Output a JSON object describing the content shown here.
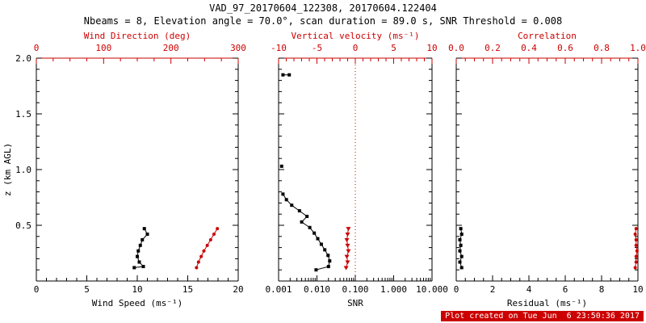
{
  "title": "VAD_97_20170604_122308, 20170604.122404",
  "subtitle": "Nbeams = 8, Elevation angle = 70.0°, scan duration = 89.0 s, SNR Threshold = 0.008",
  "footer": {
    "text": "Plot created on Tue Jun  6 23:50:36 2017"
  },
  "colors": {
    "primary": "#000000",
    "secondary": "#cc0000",
    "background": "#ffffff",
    "footer_bg": "#cc0000",
    "footer_fg": "#ffffff"
  },
  "chart_data": [
    {
      "type": "line",
      "name": "wind-panel",
      "bottom_axis": {
        "label": "Wind Speed (ms⁻¹)",
        "min": 0,
        "max": 20,
        "ticks": [
          0,
          5,
          10,
          15,
          20
        ],
        "tick_labels": [
          "0",
          "5",
          "10",
          "15",
          "20"
        ],
        "minor_step": 1,
        "color": "black"
      },
      "top_axis": {
        "label": "Wind Direction (deg)",
        "min": 0,
        "max": 300,
        "ticks": [
          0,
          100,
          200,
          300
        ],
        "tick_labels": [
          "0",
          "100",
          "200",
          "300"
        ],
        "minor_step": 25,
        "color": "red"
      },
      "y_axis": {
        "label": "z (km AGL)",
        "min": 0,
        "max": 2,
        "ticks": [
          0.5,
          1.0,
          1.5,
          2.0
        ],
        "tick_labels": [
          "0.5",
          "1.0",
          "1.5",
          "2.0"
        ],
        "minor_step": 0.1,
        "show_labels": true
      },
      "series": [
        {
          "name": "wind-speed",
          "axis": "bottom",
          "color": "black",
          "marker": "square",
          "points": [
            [
              9.7,
              0.12
            ],
            [
              10.6,
              0.13
            ],
            [
              10.2,
              0.17
            ],
            [
              10.0,
              0.22
            ],
            [
              10.1,
              0.27
            ],
            [
              10.3,
              0.32
            ],
            [
              10.5,
              0.37
            ],
            [
              11.0,
              0.42
            ],
            [
              10.7,
              0.47
            ]
          ]
        },
        {
          "name": "wind-direction",
          "axis": "top",
          "color": "red",
          "marker": "circle",
          "points": [
            [
              238,
              0.12
            ],
            [
              241,
              0.17
            ],
            [
              245,
              0.22
            ],
            [
              249,
              0.27
            ],
            [
              254,
              0.32
            ],
            [
              259,
              0.37
            ],
            [
              264,
              0.42
            ],
            [
              269,
              0.47
            ]
          ]
        }
      ]
    },
    {
      "type": "line",
      "name": "snr-panel",
      "bottom_axis": {
        "label": "SNR",
        "min": 0.001,
        "max": 10,
        "scale": "log",
        "ticks": [
          0.001,
          0.01,
          0.1,
          1,
          10
        ],
        "tick_labels": [
          "0.001",
          "0.010",
          "0.100",
          "1.000",
          "10.000"
        ],
        "color": "black"
      },
      "top_axis": {
        "label": "Vertical velocity (ms⁻¹)",
        "min": -10,
        "max": 10,
        "ticks": [
          -10,
          -5,
          0,
          5,
          10
        ],
        "tick_labels": [
          "-10",
          "-5",
          "0",
          "5",
          "10"
        ],
        "minor_step": 1,
        "color": "red"
      },
      "y_axis": {
        "min": 0,
        "max": 2,
        "ticks": [
          0.5,
          1.0,
          1.5,
          2.0
        ],
        "tick_labels": [],
        "minor_step": 0.1,
        "show_labels": false
      },
      "refline": {
        "axis": "top",
        "value": 0,
        "style": "dotted",
        "color": "red"
      },
      "series": [
        {
          "name": "snr-isolated-upper",
          "axis": "bottom",
          "color": "black",
          "marker": "square",
          "points": [
            [
              0.0013,
              1.85
            ],
            [
              0.0019,
              1.85
            ]
          ]
        },
        {
          "name": "snr-isolated-mid",
          "axis": "bottom",
          "color": "black",
          "marker": "square",
          "points": [
            [
              0.0012,
              1.03
            ]
          ]
        },
        {
          "name": "snr-profile",
          "axis": "bottom",
          "color": "black",
          "marker": "square",
          "points": [
            [
              0.0013,
              0.78
            ],
            [
              0.0016,
              0.73
            ],
            [
              0.0022,
              0.68
            ],
            [
              0.0035,
              0.63
            ],
            [
              0.0055,
              0.58
            ],
            [
              0.004,
              0.53
            ],
            [
              0.0065,
              0.48
            ],
            [
              0.0085,
              0.43
            ],
            [
              0.0105,
              0.38
            ],
            [
              0.013,
              0.33
            ],
            [
              0.016,
              0.28
            ],
            [
              0.0195,
              0.23
            ],
            [
              0.0215,
              0.18
            ],
            [
              0.02,
              0.13
            ],
            [
              0.0095,
              0.1
            ]
          ]
        },
        {
          "name": "vertical-velocity",
          "axis": "top",
          "color": "red",
          "marker": "triangle-down",
          "points": [
            [
              -1.2,
              0.12
            ],
            [
              -1.0,
              0.17
            ],
            [
              -1.1,
              0.22
            ],
            [
              -0.9,
              0.27
            ],
            [
              -1.0,
              0.32
            ],
            [
              -1.1,
              0.37
            ],
            [
              -1.0,
              0.42
            ],
            [
              -0.9,
              0.47
            ]
          ]
        }
      ]
    },
    {
      "type": "line",
      "name": "residual-panel",
      "bottom_axis": {
        "label": "Residual (ms⁻¹)",
        "min": 0,
        "max": 10,
        "ticks": [
          0,
          2,
          4,
          6,
          8,
          10
        ],
        "tick_labels": [
          "0",
          "2",
          "4",
          "6",
          "8",
          "10"
        ],
        "minor_step": 0.5,
        "color": "black"
      },
      "top_axis": {
        "label": "Correlation",
        "min": 0,
        "max": 1,
        "ticks": [
          0,
          0.2,
          0.4,
          0.6,
          0.8,
          1.0
        ],
        "tick_labels": [
          "0.0",
          "0.2",
          "0.4",
          "0.6",
          "0.8",
          "1.0"
        ],
        "minor_step": 0.05,
        "color": "red"
      },
      "y_axis": {
        "min": 0,
        "max": 2,
        "ticks": [
          0.5,
          1.0,
          1.5,
          2.0
        ],
        "tick_labels": [],
        "minor_step": 0.1,
        "show_labels": false
      },
      "series": [
        {
          "name": "residual",
          "axis": "bottom",
          "color": "black",
          "marker": "square",
          "points": [
            [
              0.3,
              0.12
            ],
            [
              0.2,
              0.17
            ],
            [
              0.3,
              0.22
            ],
            [
              0.2,
              0.27
            ],
            [
              0.25,
              0.32
            ],
            [
              0.2,
              0.37
            ],
            [
              0.3,
              0.42
            ],
            [
              0.25,
              0.47
            ]
          ]
        },
        {
          "name": "correlation",
          "axis": "top",
          "color": "red",
          "marker": "circle",
          "points": [
            [
              0.985,
              0.12
            ],
            [
              0.99,
              0.17
            ],
            [
              0.99,
              0.22
            ],
            [
              0.995,
              0.27
            ],
            [
              0.99,
              0.32
            ],
            [
              0.99,
              0.37
            ],
            [
              0.985,
              0.42
            ],
            [
              0.99,
              0.47
            ]
          ]
        }
      ]
    }
  ]
}
